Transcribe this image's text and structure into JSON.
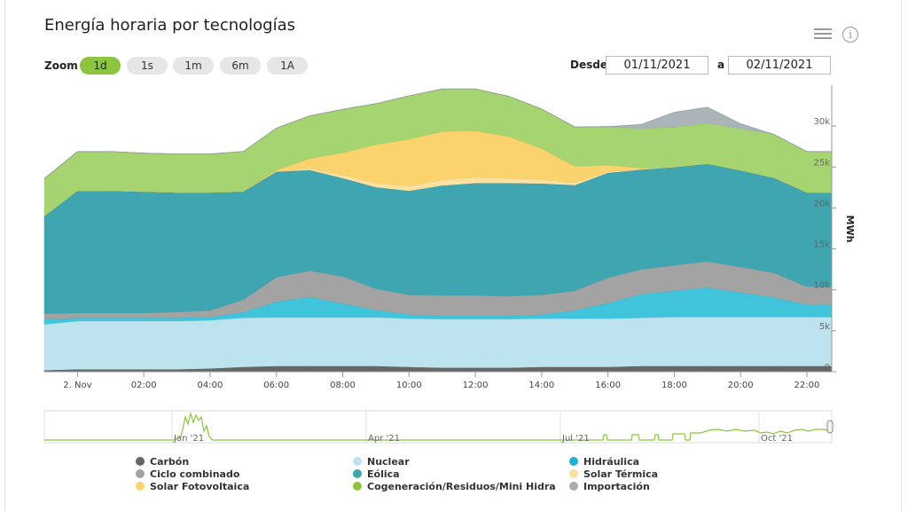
{
  "title": "Energía horaria por tecnologías",
  "zoom": {
    "label": "Zoom",
    "options": [
      "1d",
      "1s",
      "1m",
      "6m",
      "1A"
    ],
    "active": "1d"
  },
  "range": {
    "from_label": "Desde",
    "from": "01/11/2021",
    "to_label": "a",
    "to": "02/11/2021"
  },
  "chart_data": {
    "type": "area",
    "stacked": true,
    "ylabel": "MWh",
    "ylim": [
      0,
      35000
    ],
    "yticks": [
      0,
      5000,
      10000,
      15000,
      20000,
      25000,
      30000
    ],
    "ytick_labels": [
      "0",
      "5k",
      "10k",
      "15k",
      "20k",
      "25k",
      "30k"
    ],
    "x_hours": [
      0,
      1,
      2,
      3,
      4,
      5,
      6,
      7,
      8,
      9,
      10,
      11,
      12,
      13,
      14,
      15,
      16,
      17,
      18,
      19,
      20,
      21,
      22,
      23
    ],
    "xtick_hours": [
      1,
      3,
      5,
      7,
      9,
      11,
      13,
      15,
      17,
      19,
      21,
      23
    ],
    "xtick_labels": [
      "2. Nov",
      "02:00",
      "04:00",
      "06:00",
      "08:00",
      "10:00",
      "12:00",
      "14:00",
      "16:00",
      "18:00",
      "20:00",
      "22:00"
    ],
    "series": [
      {
        "name": "Carbón",
        "color": "#666666",
        "values": [
          200,
          300,
          300,
          300,
          300,
          400,
          600,
          700,
          700,
          700,
          700,
          600,
          500,
          500,
          500,
          600,
          600,
          600,
          700,
          700,
          700,
          700,
          700,
          700
        ]
      },
      {
        "name": "Nuclear",
        "color": "#bde3ee",
        "values": [
          5600,
          5900,
          5900,
          5900,
          5900,
          5900,
          6000,
          5950,
          5950,
          5950,
          5950,
          5900,
          5950,
          5950,
          5950,
          5900,
          5900,
          5900,
          5900,
          6000,
          6000,
          6000,
          6000,
          6000
        ]
      },
      {
        "name": "Hidráulica",
        "color": "#40c4dc",
        "values": [
          600,
          400,
          400,
          400,
          400,
          400,
          700,
          1900,
          2500,
          1700,
          900,
          500,
          400,
          400,
          400,
          500,
          1000,
          1900,
          2900,
          3200,
          3600,
          3000,
          2400,
          1500
        ]
      },
      {
        "name": "Ciclo combinado",
        "color": "#a3a3a3",
        "values": [
          700,
          600,
          600,
          600,
          700,
          800,
          1500,
          3000,
          3200,
          3300,
          2600,
          2400,
          2500,
          2500,
          2400,
          2400,
          2400,
          3100,
          3000,
          3100,
          3200,
          3100,
          3000,
          2200
        ]
      },
      {
        "name": "Eólica",
        "color": "#3fa5b0",
        "values": [
          11900,
          14900,
          14900,
          14800,
          14600,
          14400,
          13200,
          12900,
          12300,
          12000,
          12400,
          12700,
          13400,
          13700,
          13800,
          13600,
          12900,
          12800,
          12200,
          12000,
          11900,
          11800,
          11600,
          11500
        ]
      },
      {
        "name": "Solar Térmica",
        "color": "#fde1a0",
        "values": [
          0,
          0,
          0,
          0,
          0,
          0,
          0,
          50,
          200,
          400,
          500,
          600,
          700,
          700,
          600,
          500,
          300,
          150,
          50,
          0,
          0,
          0,
          0,
          0
        ]
      },
      {
        "name": "Solar Fotovoltaica",
        "color": "#fbd36c",
        "values": [
          0,
          0,
          0,
          0,
          0,
          0,
          0,
          150,
          1200,
          2700,
          4700,
          5700,
          5900,
          5700,
          5100,
          3800,
          2000,
          800,
          150,
          0,
          0,
          0,
          0,
          0
        ]
      },
      {
        "name": "Cogeneración/Residuos/Mini Hidra",
        "color": "#a6d470",
        "values": [
          4600,
          4800,
          4800,
          4700,
          4700,
          4700,
          4900,
          5100,
          5200,
          5300,
          5000,
          5300,
          5200,
          5100,
          4900,
          4800,
          4800,
          4700,
          4800,
          4900,
          5000,
          5100,
          5300,
          5000
        ]
      },
      {
        "name": "Importación",
        "color": "#aab4b9",
        "values": [
          0,
          0,
          0,
          0,
          0,
          0,
          0,
          0,
          0,
          0,
          0,
          0,
          0,
          0,
          0,
          0,
          0,
          0,
          500,
          1800,
          1900,
          600,
          0,
          0
        ]
      }
    ]
  },
  "navigator": {
    "labels": [
      "Jan '21",
      "Apr '21",
      "Jul '21",
      "Oct '21"
    ]
  }
}
